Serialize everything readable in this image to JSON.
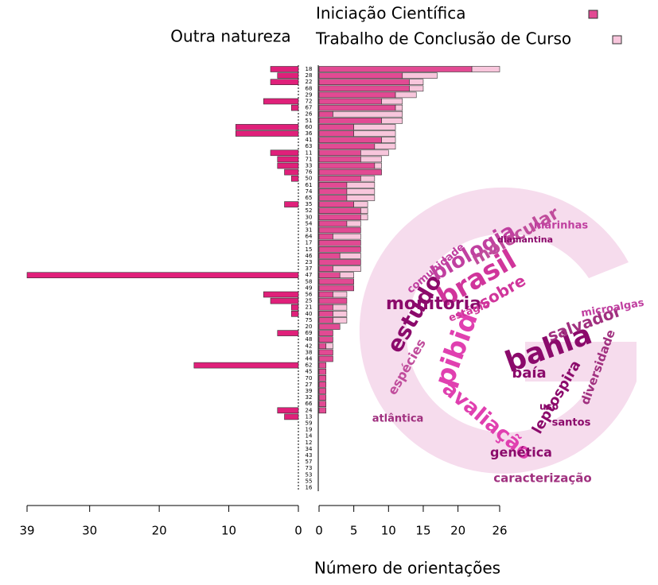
{
  "chart_data": [
    {
      "type": "hbar",
      "title": "Outra natureza",
      "direction": "left",
      "color": "#e0207a",
      "values": [
        4,
        3,
        4,
        0,
        0,
        5,
        1,
        0,
        0,
        9,
        9,
        0,
        0,
        4,
        3,
        3,
        2,
        1,
        0,
        0,
        0,
        2,
        0,
        0,
        0,
        0,
        0,
        0,
        0,
        0,
        0,
        0,
        39,
        0,
        0,
        5,
        4,
        1,
        1,
        0,
        0,
        3,
        0,
        0,
        0,
        0,
        15,
        0,
        0,
        0,
        0,
        0,
        0,
        3,
        2,
        0,
        0,
        0,
        0,
        0,
        0,
        0,
        0,
        0,
        0,
        0
      ],
      "xlim": [
        39,
        0
      ],
      "xticks": [
        39,
        30,
        20,
        10,
        0
      ]
    },
    {
      "type": "stacked-hbar",
      "direction": "right",
      "xlabel": "Número de orientações",
      "legend": "top",
      "categories": [
        "18",
        "28",
        "22",
        "68",
        "29",
        "72",
        "67",
        "26",
        "51",
        "60",
        "36",
        "41",
        "63",
        "11",
        "71",
        "33",
        "76",
        "50",
        "61",
        "74",
        "65",
        "35",
        "52",
        "30",
        "54",
        "31",
        "64",
        "17",
        "15",
        "46",
        "23",
        "37",
        "47",
        "58",
        "49",
        "56",
        "25",
        "21",
        "40",
        "75",
        "20",
        "69",
        "48",
        "42",
        "38",
        "44",
        "62",
        "45",
        "70",
        "27",
        "39",
        "32",
        "66",
        "24",
        "13",
        "59",
        "19",
        "14",
        "12",
        "34",
        "43",
        "57",
        "73",
        "53",
        "55",
        "16"
      ],
      "series": [
        {
          "name": "Iniciação Científica",
          "color": "#e24a93",
          "values": [
            22,
            12,
            13,
            13,
            11,
            9,
            11,
            2,
            9,
            5,
            5,
            9,
            8,
            6,
            6,
            8,
            9,
            6,
            4,
            4,
            4,
            5,
            6,
            6,
            4,
            6,
            2,
            6,
            6,
            3,
            6,
            2,
            3,
            5,
            5,
            2,
            4,
            2,
            2,
            2,
            3,
            2,
            2,
            1,
            2,
            2,
            1,
            1,
            1,
            1,
            1,
            1,
            1,
            1,
            0,
            0,
            0,
            0,
            0,
            0,
            0,
            0,
            0,
            0,
            0,
            0
          ]
        },
        {
          "name": "Trabalho de Conclusão de Curso",
          "color": "#f8c6dc",
          "values": [
            4,
            5,
            2,
            2,
            3,
            3,
            1,
            10,
            3,
            6,
            6,
            2,
            3,
            4,
            3,
            1,
            0,
            2,
            4,
            4,
            4,
            2,
            1,
            1,
            2,
            0,
            4,
            0,
            0,
            3,
            0,
            4,
            2,
            0,
            0,
            2,
            0,
            2,
            2,
            2,
            0,
            0,
            0,
            1,
            0,
            0,
            0,
            0,
            0,
            0,
            0,
            0,
            0,
            0,
            0,
            0,
            0,
            0,
            0,
            0,
            0,
            0,
            0,
            0,
            0,
            0
          ]
        }
      ],
      "xlim": [
        0,
        26
      ],
      "xticks": [
        0,
        5,
        10,
        15,
        20,
        26
      ]
    }
  ],
  "word_cloud": {
    "words": [
      {
        "text": "bahia",
        "color": "#8b0a6b"
      },
      {
        "text": "brasil",
        "color": "#d0359b"
      },
      {
        "text": "pibid",
        "color": "#e040b0"
      },
      {
        "text": "estudo",
        "color": "#8b0a6b"
      },
      {
        "text": "biologia",
        "color": "#c040a0"
      },
      {
        "text": "molecular",
        "color": "#c04d9c"
      },
      {
        "text": "monitoria",
        "color": "#8b0a6b"
      },
      {
        "text": "avaliação",
        "color": "#e040b0"
      },
      {
        "text": "salvador",
        "color": "#a0307f"
      },
      {
        "text": "leptospira",
        "color": "#8b0a6b"
      },
      {
        "text": "diversidade",
        "color": "#a0307f"
      },
      {
        "text": "sobre",
        "color": "#d0359b"
      },
      {
        "text": "baía",
        "color": "#8b0a6b"
      },
      {
        "text": "microalgas",
        "color": "#c040a0"
      },
      {
        "text": "genética",
        "color": "#8b0a6b"
      },
      {
        "text": "caracterização",
        "color": "#a0307f"
      },
      {
        "text": "espécies",
        "color": "#c04d9c"
      },
      {
        "text": "atlântica",
        "color": "#a0307f"
      },
      {
        "text": "santos",
        "color": "#8b0a6b"
      },
      {
        "text": "marinhas",
        "color": "#c040a0"
      },
      {
        "text": "diamantina",
        "color": "#8b0a6b"
      },
      {
        "text": "comunidade",
        "color": "#c040a0"
      },
      {
        "text": "estágio",
        "color": "#d0359b"
      },
      {
        "text": "uso",
        "color": "#8b0a6b"
      }
    ]
  }
}
